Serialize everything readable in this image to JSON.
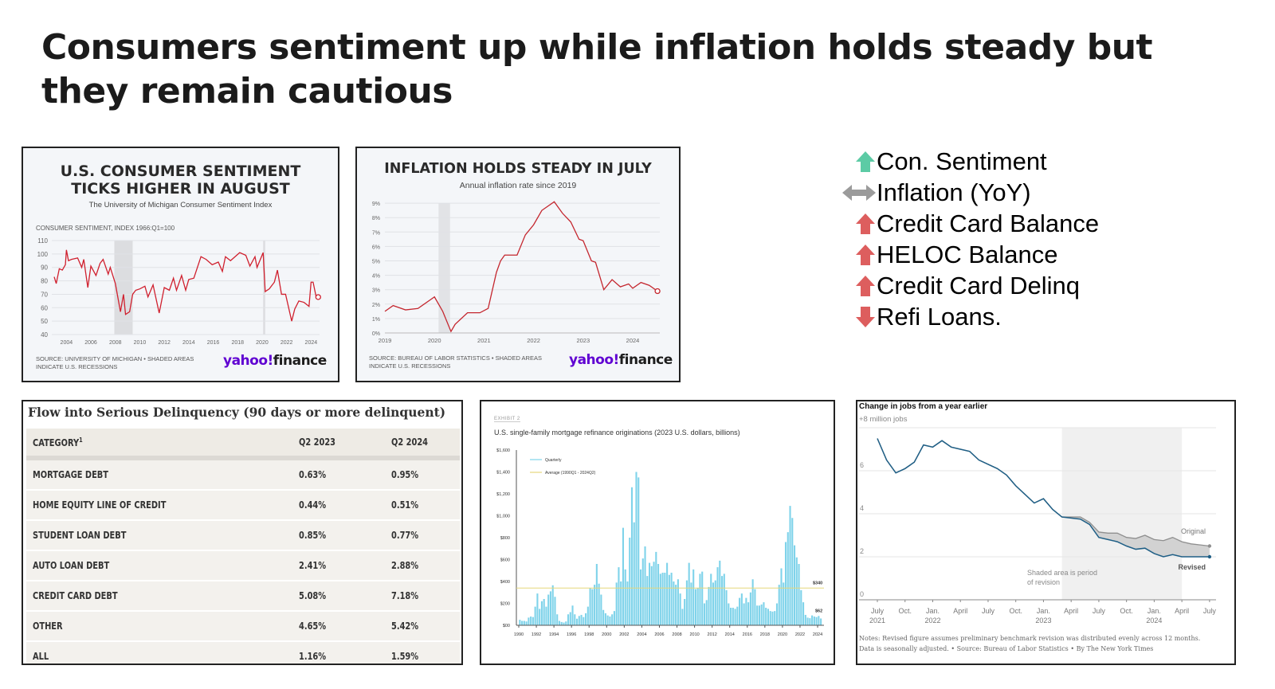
{
  "title": "Consumers sentiment up while inflation holds steady but they remain cautious",
  "summary": {
    "items": [
      {
        "label": "Con. Sentiment",
        "direction": "up",
        "icon": "arrow-up-icon",
        "color": "#5ccba5"
      },
      {
        "label": "Inflation (YoY)",
        "direction": "flat",
        "icon": "arrow-left-right-icon",
        "color": "#9b9b9b"
      },
      {
        "label": "Credit Card Balance",
        "direction": "up",
        "icon": "arrow-up-icon",
        "color": "#dd5e5e"
      },
      {
        "label": "HELOC Balance",
        "direction": "up",
        "icon": "arrow-up-icon",
        "color": "#dd5e5e"
      },
      {
        "label": "Credit Card Delinq",
        "direction": "up",
        "icon": "arrow-up-icon",
        "color": "#dd5e5e"
      },
      {
        "label": "Refi Loans.",
        "direction": "down",
        "icon": "arrow-down-icon",
        "color": "#dd5e5e"
      }
    ]
  },
  "table": {
    "title": "Flow into Serious Delinquency (90 days or more delinquent)",
    "headers": [
      "CATEGORY",
      "Q2 2023",
      "Q2 2024"
    ],
    "header_sup": "1",
    "rows": [
      [
        "MORTGAGE DEBT",
        "0.63%",
        "0.95%"
      ],
      [
        "HOME EQUITY LINE OF CREDIT",
        "0.44%",
        "0.51%"
      ],
      [
        "STUDENT LOAN DEBT",
        "0.85%",
        "0.77%"
      ],
      [
        "AUTO LOAN DEBT",
        "2.41%",
        "2.88%"
      ],
      [
        "CREDIT CARD DEBT",
        "5.08%",
        "7.18%"
      ],
      [
        "OTHER",
        "4.65%",
        "5.42%"
      ],
      [
        "ALL",
        "1.16%",
        "1.59%"
      ]
    ]
  },
  "chart_data": [
    {
      "type": "line",
      "title": "U.S. CONSUMER SENTIMENT TICKS HIGHER IN AUGUST",
      "subtitle": "The University of Michigan Consumer Sentiment Index",
      "ylabel": "CONSUMER SENTIMENT, INDEX 1966:Q1=100",
      "ylim": [
        40,
        110
      ],
      "yticks": [
        40,
        50,
        60,
        70,
        80,
        90,
        100,
        110
      ],
      "xticks": [
        "2004",
        "2006",
        "2008",
        "2010",
        "2012",
        "2014",
        "2016",
        "2018",
        "2020",
        "2022",
        "2024"
      ],
      "grid": true,
      "line_color": "#d0202e",
      "recessions": [
        [
          "2007-12",
          "2009-06"
        ],
        [
          "2020-02",
          "2020-04"
        ]
      ],
      "source": "SOURCE: UNIVERSITY OF MICHIGAN • SHADED AREAS INDICATE U.S. RECESSIONS",
      "logo": "yahoo!finance",
      "points": [
        [
          "2003-01",
          83
        ],
        [
          "2003-03",
          78
        ],
        [
          "2003-06",
          89
        ],
        [
          "2003-09",
          88
        ],
        [
          "2003-12",
          92
        ],
        [
          "2004-01",
          103
        ],
        [
          "2004-03",
          95
        ],
        [
          "2004-06",
          96
        ],
        [
          "2004-12",
          97
        ],
        [
          "2005-04",
          90
        ],
        [
          "2005-06",
          96
        ],
        [
          "2005-10",
          75
        ],
        [
          "2006-01",
          91
        ],
        [
          "2006-06",
          84
        ],
        [
          "2006-10",
          93
        ],
        [
          "2007-01",
          96
        ],
        [
          "2007-06",
          85
        ],
        [
          "2007-08",
          90
        ],
        [
          "2008-01",
          78
        ],
        [
          "2008-06",
          57
        ],
        [
          "2008-09",
          70
        ],
        [
          "2008-11",
          55
        ],
        [
          "2009-03",
          57
        ],
        [
          "2009-06",
          70
        ],
        [
          "2009-09",
          73
        ],
        [
          "2010-01",
          74
        ],
        [
          "2010-06",
          76
        ],
        [
          "2010-09",
          68
        ],
        [
          "2011-02",
          77
        ],
        [
          "2011-08",
          56
        ],
        [
          "2012-01",
          75
        ],
        [
          "2012-06",
          73
        ],
        [
          "2012-10",
          82
        ],
        [
          "2013-01",
          73
        ],
        [
          "2013-06",
          84
        ],
        [
          "2013-10",
          73
        ],
        [
          "2014-01",
          81
        ],
        [
          "2014-06",
          82
        ],
        [
          "2015-01",
          98
        ],
        [
          "2015-06",
          96
        ],
        [
          "2015-12",
          92
        ],
        [
          "2016-06",
          94
        ],
        [
          "2016-10",
          87
        ],
        [
          "2017-01",
          98
        ],
        [
          "2017-06",
          95
        ],
        [
          "2018-03",
          101
        ],
        [
          "2018-09",
          99
        ],
        [
          "2019-01",
          91
        ],
        [
          "2019-06",
          98
        ],
        [
          "2019-08",
          90
        ],
        [
          "2020-02",
          101
        ],
        [
          "2020-04",
          72
        ],
        [
          "2020-08",
          74
        ],
        [
          "2021-01",
          79
        ],
        [
          "2021-04",
          88
        ],
        [
          "2021-08",
          70
        ],
        [
          "2021-12",
          70
        ],
        [
          "2022-06",
          50
        ],
        [
          "2022-09",
          59
        ],
        [
          "2023-01",
          65
        ],
        [
          "2023-06",
          64
        ],
        [
          "2023-11",
          61
        ],
        [
          "2024-01",
          79
        ],
        [
          "2024-03",
          79
        ],
        [
          "2024-06",
          68
        ],
        [
          "2024-08",
          67.9
        ]
      ]
    },
    {
      "type": "line",
      "title": "INFLATION HOLDS STEADY IN JULY",
      "subtitle": "Annual inflation rate since 2019",
      "ylim": [
        0,
        9
      ],
      "yticks": [
        "0%",
        "1%",
        "2%",
        "3%",
        "4%",
        "5%",
        "6%",
        "7%",
        "8%",
        "9%"
      ],
      "xticks": [
        "2019",
        "2020",
        "2021",
        "2022",
        "2023",
        "2024"
      ],
      "grid": true,
      "line_color": "#c4262e",
      "recessions": [
        [
          "2020-02",
          "2020-04"
        ]
      ],
      "source": "SOURCE: BUREAU OF LABOR STATISTICS • SHADED AREAS INDICATE U.S. RECESSIONS",
      "logo": "yahoo!finance",
      "points": [
        [
          "2019-01",
          1.5
        ],
        [
          "2019-03",
          1.9
        ],
        [
          "2019-06",
          1.6
        ],
        [
          "2019-09",
          1.7
        ],
        [
          "2019-12",
          2.3
        ],
        [
          "2020-01",
          2.5
        ],
        [
          "2020-03",
          1.5
        ],
        [
          "2020-05",
          0.1
        ],
        [
          "2020-06",
          0.6
        ],
        [
          "2020-09",
          1.4
        ],
        [
          "2020-12",
          1.4
        ],
        [
          "2021-02",
          1.7
        ],
        [
          "2021-04",
          4.2
        ],
        [
          "2021-05",
          5.0
        ],
        [
          "2021-06",
          5.4
        ],
        [
          "2021-09",
          5.4
        ],
        [
          "2021-11",
          6.8
        ],
        [
          "2022-01",
          7.5
        ],
        [
          "2022-03",
          8.5
        ],
        [
          "2022-06",
          9.1
        ],
        [
          "2022-08",
          8.3
        ],
        [
          "2022-10",
          7.7
        ],
        [
          "2022-12",
          6.5
        ],
        [
          "2023-01",
          6.4
        ],
        [
          "2023-03",
          5.0
        ],
        [
          "2023-04",
          4.9
        ],
        [
          "2023-06",
          3.0
        ],
        [
          "2023-08",
          3.7
        ],
        [
          "2023-10",
          3.2
        ],
        [
          "2023-12",
          3.4
        ],
        [
          "2024-01",
          3.1
        ],
        [
          "2024-03",
          3.5
        ],
        [
          "2024-05",
          3.3
        ],
        [
          "2024-07",
          2.9
        ]
      ]
    },
    {
      "type": "bar",
      "exhibit": "EXHIBIT 2",
      "title": "U.S. single-family mortgage refinance originations (2023 U.S. dollars, billions)",
      "ylim": [
        0,
        1600
      ],
      "yticks": [
        "$00",
        "$200",
        "$400",
        "$600",
        "$800",
        "$1,000",
        "$1,200",
        "$1,400",
        "$1,600"
      ],
      "xticks": [
        "1990",
        "1992",
        "1994",
        "1996",
        "1998",
        "2000",
        "2002",
        "2004",
        "2006",
        "2008",
        "2010",
        "2012",
        "2014",
        "2016",
        "2018",
        "2020",
        "2022",
        "2024"
      ],
      "series": [
        {
          "name": "Quarterly",
          "color": "#7fd3ea",
          "start": "1990Q1",
          "values": [
            50,
            40,
            40,
            35,
            70,
            80,
            75,
            170,
            290,
            150,
            220,
            240,
            170,
            280,
            310,
            365,
            260,
            100,
            40,
            30,
            25,
            35,
            100,
            120,
            180,
            100,
            60,
            85,
            95,
            75,
            110,
            170,
            340,
            330,
            370,
            560,
            380,
            280,
            140,
            110,
            90,
            80,
            100,
            130,
            390,
            530,
            400,
            890,
            510,
            400,
            800,
            1260,
            940,
            1400,
            1350,
            510,
            610,
            720,
            450,
            570,
            540,
            580,
            670,
            560,
            470,
            480,
            480,
            570,
            460,
            480,
            400,
            370,
            420,
            290,
            150,
            240,
            410,
            570,
            390,
            510,
            330,
            340,
            470,
            490,
            200,
            230,
            350,
            470,
            390,
            410,
            530,
            590,
            450,
            470,
            320,
            200,
            160,
            160,
            150,
            170,
            250,
            290,
            200,
            250,
            210,
            300,
            420,
            330,
            180,
            180,
            190,
            210,
            160,
            150,
            130,
            125,
            130,
            200,
            370,
            520,
            390,
            760,
            850,
            1090,
            980,
            730,
            620,
            560,
            320,
            210,
            95,
            70,
            65,
            90,
            80,
            75,
            85,
            62
          ]
        },
        {
          "name": "Average (1990Q1 - 2024Q2)",
          "color": "#e6d77a",
          "value": 340
        }
      ],
      "annotations": [
        "$340",
        "$62"
      ]
    },
    {
      "type": "line",
      "title": "Change in jobs from a year earlier",
      "ylabel_top": "+8 million jobs",
      "ylim": [
        0,
        8
      ],
      "yticks": [
        "0",
        "2",
        "4",
        "6"
      ],
      "xticks": [
        {
          "label": "July",
          "year": "2021"
        },
        {
          "label": "Oct.",
          "year": ""
        },
        {
          "label": "Jan.",
          "year": "2022"
        },
        {
          "label": "April",
          "year": ""
        },
        {
          "label": "July",
          "year": ""
        },
        {
          "label": "Oct.",
          "year": ""
        },
        {
          "label": "Jan.",
          "year": "2023"
        },
        {
          "label": "April",
          "year": ""
        },
        {
          "label": "July",
          "year": ""
        },
        {
          "label": "Oct.",
          "year": ""
        },
        {
          "label": "Jan.",
          "year": "2024"
        },
        {
          "label": "April",
          "year": ""
        },
        {
          "label": "July",
          "year": ""
        }
      ],
      "shaded_period": [
        "2023-03",
        "2024-04"
      ],
      "shaded_note": "Shaded area is period of revision",
      "start_month": "2021-07",
      "series": [
        {
          "name": "Original",
          "color": "#8f8f8f",
          "values": [
            7.5,
            6.5,
            5.9,
            6.1,
            6.4,
            7.2,
            7.1,
            7.4,
            7.1,
            7.0,
            6.9,
            6.5,
            6.3,
            6.1,
            5.8,
            5.3,
            4.9,
            4.5,
            4.7,
            4.2,
            3.85,
            3.85,
            3.85,
            3.6,
            3.15,
            3.1,
            3.1,
            2.9,
            2.85,
            3.0,
            2.8,
            2.75,
            2.9,
            2.7,
            2.6,
            2.55,
            2.5
          ]
        },
        {
          "name": "Revised",
          "color": "#1f5f86",
          "values": [
            7.5,
            6.5,
            5.9,
            6.1,
            6.4,
            7.2,
            7.1,
            7.4,
            7.1,
            7.0,
            6.9,
            6.5,
            6.3,
            6.1,
            5.8,
            5.3,
            4.9,
            4.5,
            4.7,
            4.2,
            3.85,
            3.8,
            3.75,
            3.5,
            2.9,
            2.8,
            2.7,
            2.5,
            2.35,
            2.4,
            2.15,
            2.0,
            2.1,
            2.0,
            2.0,
            2.0,
            2.0
          ]
        }
      ],
      "notes": "Notes: Revised figure assumes preliminary benchmark revision was distributed evenly across 12 months. Data is seasonally adjusted.  •  Source: Bureau of Labor Statistics  •  By The New York Times"
    }
  ]
}
